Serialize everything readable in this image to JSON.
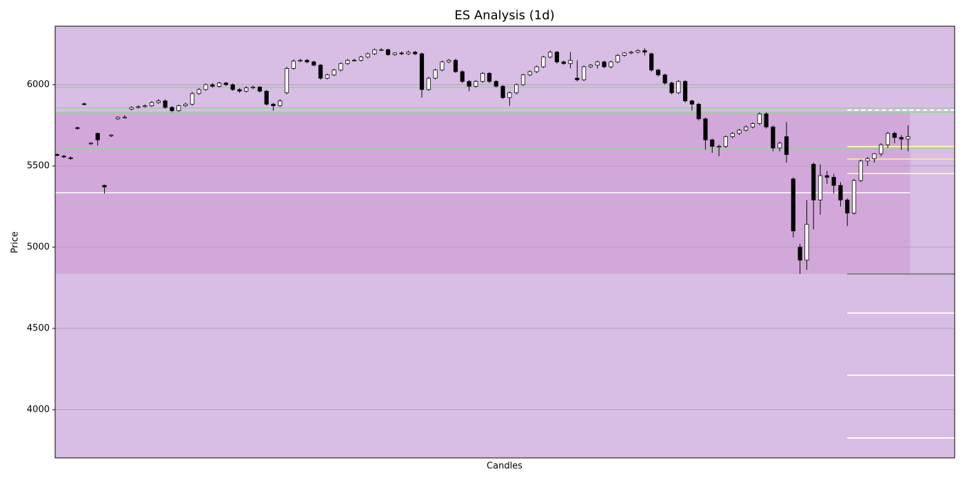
{
  "chart_data": {
    "type": "candlestick",
    "title": "ES Analysis (1d)",
    "x_label": "Candles",
    "y_label": "Price",
    "xlim": [
      -0.3,
      132.9
    ],
    "ylim": [
      3703,
      6360
    ],
    "yticks": [
      4000,
      4500,
      5000,
      5500,
      6000
    ],
    "grid": true,
    "background": "#d8bde4",
    "up_color": "#ffffff",
    "down_color": "#000000",
    "zone": {
      "low": 4835,
      "high": 5831,
      "color": "#d2a8da"
    },
    "support_resistance": [
      {
        "value": 5983,
        "color": "#8fd88f"
      },
      {
        "value": 5856,
        "color": "#8fd88f"
      },
      {
        "value": 5831,
        "color": "#8fd88f"
      },
      {
        "value": 5610,
        "color": "#8fd88f"
      }
    ],
    "reference_line": {
      "value": 5335,
      "color": "#ffffff"
    },
    "projection_levels": [
      {
        "value": 5843,
        "color": "#ffffff",
        "dashed": true
      },
      {
        "value": 5619,
        "color": "#fff3b0",
        "dashed": false
      },
      {
        "value": 5542,
        "color": "#f5dcb8",
        "dashed": false
      },
      {
        "value": 5453,
        "color": "#fff3b0",
        "dashed": false
      },
      {
        "value": 4835,
        "color": "#808080",
        "dashed": false
      },
      {
        "value": 4594,
        "color": "#ffffff",
        "dashed": false
      },
      {
        "value": 4212,
        "color": "#ffffff",
        "dashed": false
      },
      {
        "value": 3826,
        "color": "#ffffff",
        "dashed": false
      }
    ],
    "open": [
      5570,
      5560,
      5550,
      5735,
      5882,
      5638,
      5700,
      5380,
      5685,
      5790,
      5800,
      5850,
      5860,
      5865,
      5870,
      5890,
      5900,
      5860,
      5840,
      5870,
      5880,
      5945,
      5970,
      6000,
      5990,
      6010,
      6000,
      5970,
      5960,
      5980,
      5985,
      5960,
      5880,
      5870,
      5950,
      6100,
      6145,
      6150,
      6140,
      6120,
      6040,
      6060,
      6090,
      6130,
      6150,
      6150,
      6170,
      6190,
      6215,
      6215,
      6185,
      6195,
      6190,
      6200,
      6190,
      5970,
      6040,
      6090,
      6140,
      6150,
      6080,
      6020,
      5990,
      6020,
      6070,
      6020,
      5990,
      5920,
      5950,
      6000,
      6060,
      6080,
      6110,
      6170,
      6200,
      6140,
      6130,
      6040,
      6030,
      6110,
      6120,
      6140,
      6110,
      6140,
      6180,
      6195,
      6200,
      6210,
      6190,
      6090,
      6060,
      6010,
      5950,
      6020,
      5900,
      5880,
      5790,
      5660,
      5620,
      5620,
      5680,
      5700,
      5720,
      5740,
      5760,
      5820,
      5740,
      5610,
      5680,
      5420,
      5000,
      4920,
      5510,
      5290,
      5440,
      5430,
      5380,
      5290,
      5210,
      5410,
      5530,
      5545,
      5575,
      5630,
      5700,
      5675,
      5665
    ],
    "high": [
      5578,
      5568,
      5558,
      5742,
      5890,
      5646,
      5705,
      5385,
      5695,
      5805,
      5812,
      5868,
      5872,
      5878,
      5898,
      5910,
      5910,
      5868,
      5878,
      5890,
      5955,
      5980,
      6008,
      6010,
      6018,
      6018,
      6008,
      5978,
      5990,
      5995,
      5992,
      5968,
      5888,
      5910,
      6110,
      6155,
      6160,
      6158,
      6148,
      6128,
      6068,
      6098,
      6138,
      6158,
      6160,
      6178,
      6198,
      6222,
      6225,
      6222,
      6200,
      6205,
      6210,
      6208,
      6198,
      6048,
      6098,
      6148,
      6158,
      6160,
      6088,
      6028,
      6028,
      6078,
      6078,
      6028,
      5998,
      5958,
      6008,
      6068,
      6088,
      6118,
      6178,
      6210,
      6208,
      6148,
      6200,
      6150,
      6118,
      6128,
      6148,
      6148,
      6148,
      6188,
      6200,
      6208,
      6218,
      6225,
      6198,
      6098,
      6068,
      6018,
      6028,
      6028,
      5908,
      5888,
      5798,
      5668,
      5630,
      5688,
      5708,
      5728,
      5750,
      5768,
      5830,
      5830,
      5748,
      5650,
      5770,
      5430,
      5020,
      5290,
      5520,
      5510,
      5470,
      5450,
      5400,
      5300,
      5420,
      5540,
      5555,
      5580,
      5640,
      5710,
      5710,
      5690,
      5750
    ],
    "low": [
      5558,
      5548,
      5538,
      5722,
      5872,
      5630,
      5625,
      5330,
      5678,
      5783,
      5792,
      5842,
      5852,
      5858,
      5862,
      5882,
      5852,
      5830,
      5832,
      5862,
      5872,
      5938,
      5962,
      5982,
      5982,
      5992,
      5962,
      5950,
      5952,
      5972,
      5952,
      5872,
      5840,
      5862,
      5940,
      6092,
      6138,
      6132,
      6112,
      6030,
      6032,
      6052,
      6082,
      6122,
      6142,
      6142,
      6162,
      6182,
      6208,
      6178,
      6178,
      6182,
      6182,
      6182,
      5920,
      5962,
      6032,
      6082,
      6132,
      6072,
      6010,
      5960,
      5982,
      6012,
      6010,
      5982,
      5912,
      5870,
      5940,
      5992,
      6052,
      6072,
      6102,
      6162,
      6130,
      6122,
      6100,
      6020,
      6022,
      6102,
      6100,
      6102,
      6100,
      6132,
      6172,
      6188,
      6192,
      6180,
      6080,
      6050,
      6000,
      5940,
      5942,
      5890,
      5840,
      5780,
      5600,
      5580,
      5560,
      5610,
      5670,
      5690,
      5712,
      5730,
      5752,
      5730,
      5590,
      5590,
      5520,
      5060,
      4835,
      4860,
      5110,
      5200,
      5390,
      5330,
      5250,
      5130,
      5200,
      5400,
      5500,
      5520,
      5560,
      5610,
      5640,
      5600,
      5590
    ],
    "close": [
      5565,
      5555,
      5545,
      5730,
      5880,
      5640,
      5660,
      5370,
      5690,
      5800,
      5800,
      5860,
      5865,
      5870,
      5890,
      5900,
      5860,
      5840,
      5870,
      5880,
      5945,
      5970,
      6000,
      5990,
      6010,
      6000,
      5970,
      5960,
      5980,
      5985,
      5960,
      5880,
      5870,
      5900,
      6100,
      6145,
      6150,
      6140,
      6120,
      6040,
      6060,
      6090,
      6130,
      6150,
      6150,
      6170,
      6190,
      6215,
      6215,
      6185,
      6195,
      6190,
      6200,
      6190,
      5970,
      6040,
      6090,
      6140,
      6150,
      6080,
      6020,
      5990,
      6020,
      6070,
      6020,
      5990,
      5920,
      5950,
      6000,
      6060,
      6080,
      6110,
      6170,
      6200,
      6140,
      6130,
      6150,
      6030,
      6110,
      6120,
      6140,
      6110,
      6140,
      6180,
      6195,
      6200,
      6210,
      6200,
      6090,
      6060,
      6010,
      5950,
      6020,
      5900,
      5880,
      5790,
      5660,
      5620,
      5620,
      5680,
      5700,
      5720,
      5740,
      5760,
      5820,
      5740,
      5610,
      5640,
      5570,
      5100,
      4920,
      5140,
      5290,
      5440,
      5430,
      5380,
      5290,
      5210,
      5410,
      5530,
      5545,
      5575,
      5630,
      5700,
      5675,
      5665,
      5680
    ]
  }
}
